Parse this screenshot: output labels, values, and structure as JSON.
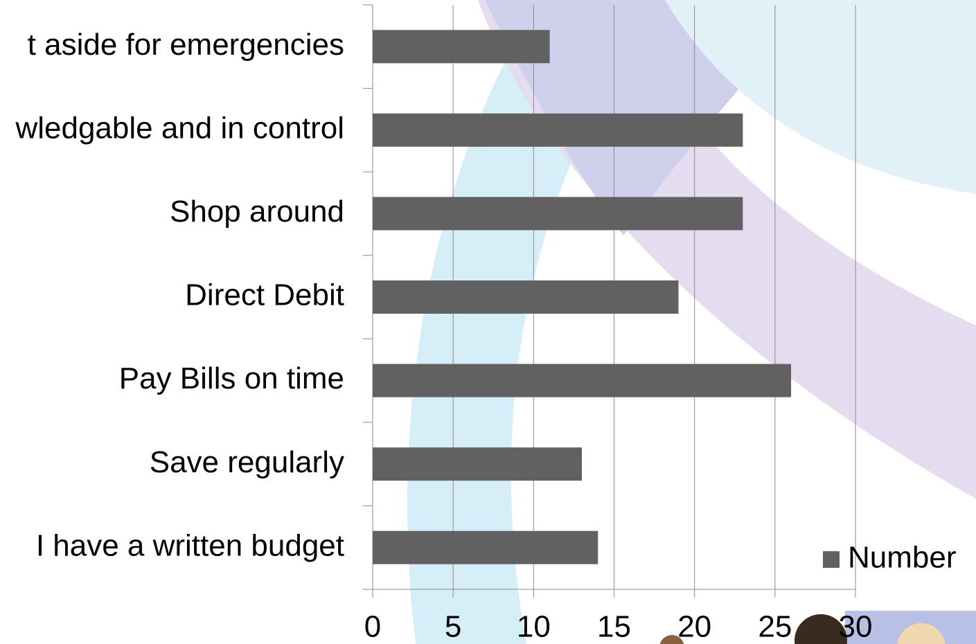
{
  "chart_data": {
    "type": "bar",
    "orientation": "horizontal",
    "categories": [
      "t aside for emergencies",
      "wledgable and in control",
      "Shop around",
      "Direct Debit",
      "Pay Bills on time",
      "Save regularly",
      "I have a written budget"
    ],
    "series": [
      {
        "name": "Number",
        "color": "#616161",
        "values": [
          11,
          23,
          23,
          19,
          26,
          13,
          14
        ]
      }
    ],
    "xlim": [
      0,
      30
    ],
    "xticks": [
      0,
      5,
      10,
      15,
      20,
      25,
      30
    ],
    "grid": true,
    "legend": "bottom-right"
  }
}
